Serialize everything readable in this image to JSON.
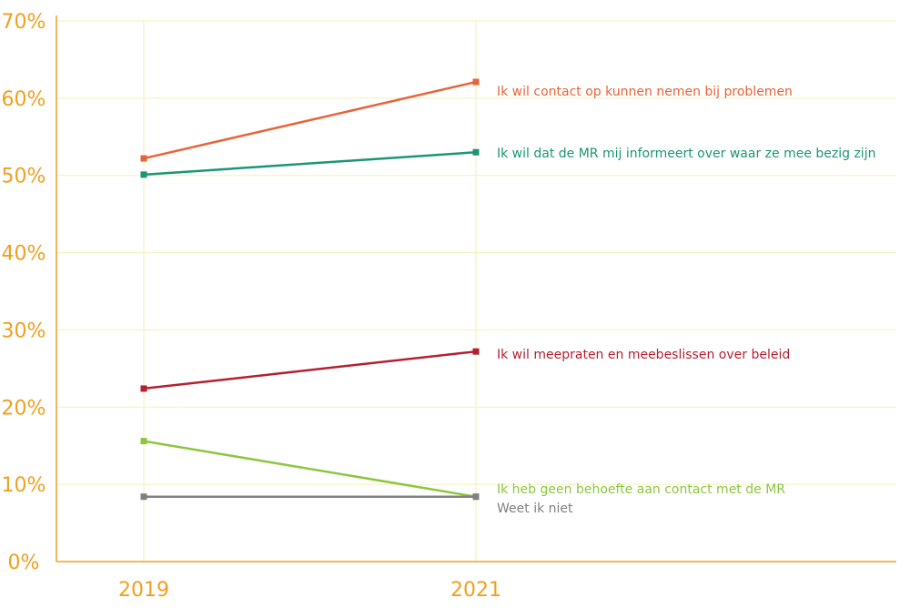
{
  "chart_data": {
    "type": "line",
    "title": "",
    "xlabel": "",
    "ylabel": "",
    "x": [
      "2019",
      "2021"
    ],
    "ylim": [
      0,
      70
    ],
    "yticks": [
      "0%",
      "10%",
      "20%",
      "30%",
      "40%",
      "50%",
      "60%",
      "70%"
    ],
    "grid": true,
    "series": [
      {
        "name": "Ik wil contact op kunnen nemen bij problemen",
        "values": [
          52.2,
          62.1
        ],
        "color": "#e8643a"
      },
      {
        "name": "Ik wil dat de MR mij informeert over waar ze mee bezig zijn",
        "values": [
          50.1,
          53.0
        ],
        "color": "#1a9674"
      },
      {
        "name": "Ik wil meepraten en meebeslissen over beleid",
        "values": [
          22.4,
          27.2
        ],
        "color": "#b51f30"
      },
      {
        "name": "Ik heb geen behoefte aan contact met de MR",
        "values": [
          15.6,
          8.4
        ],
        "color": "#8cc63f"
      },
      {
        "name": "Weet ik niet",
        "values": [
          8.4,
          8.4
        ],
        "color": "#808080"
      }
    ],
    "colors": {
      "axis": "#f0a020",
      "grid": "#f5efb8"
    }
  }
}
